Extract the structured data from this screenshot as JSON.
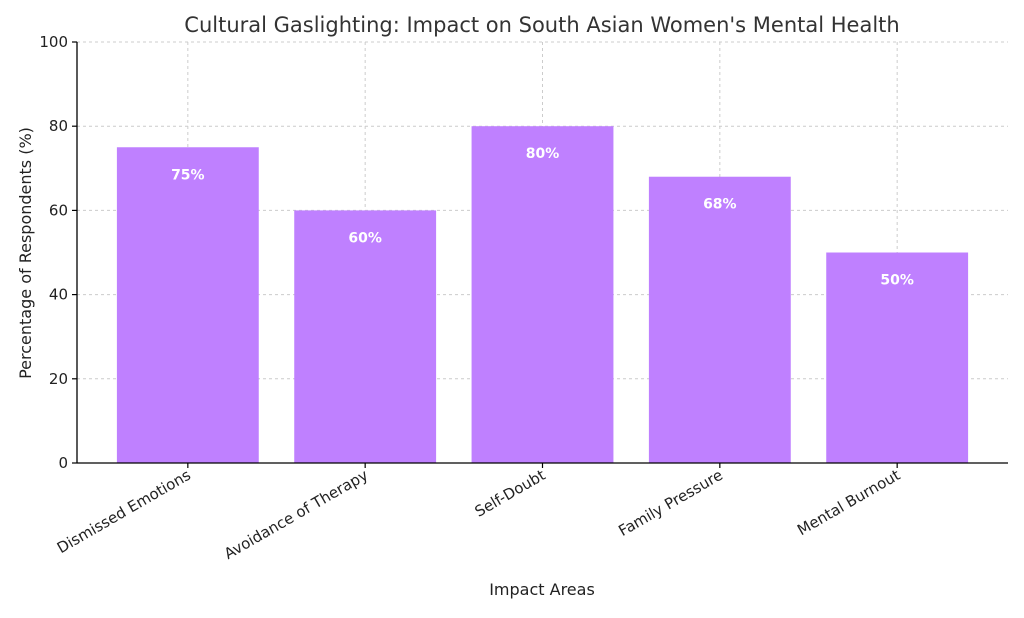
{
  "chart_data": {
    "type": "bar",
    "title": "Cultural Gaslighting: Impact on South Asian Women's Mental Health",
    "xlabel": "Impact Areas",
    "ylabel": "Percentage of Respondents (%)",
    "categories": [
      "Dismissed Emotions",
      "Avoidance of Therapy",
      "Self-Doubt",
      "Family Pressure",
      "Mental Burnout"
    ],
    "values": [
      75,
      60,
      80,
      68,
      50
    ],
    "data_labels": [
      "75%",
      "60%",
      "80%",
      "68%",
      "50%"
    ],
    "ylim": [
      0,
      100
    ],
    "yticks": [
      0,
      20,
      40,
      60,
      80,
      100
    ],
    "grid": true,
    "bar_color": "#bf80ff"
  }
}
